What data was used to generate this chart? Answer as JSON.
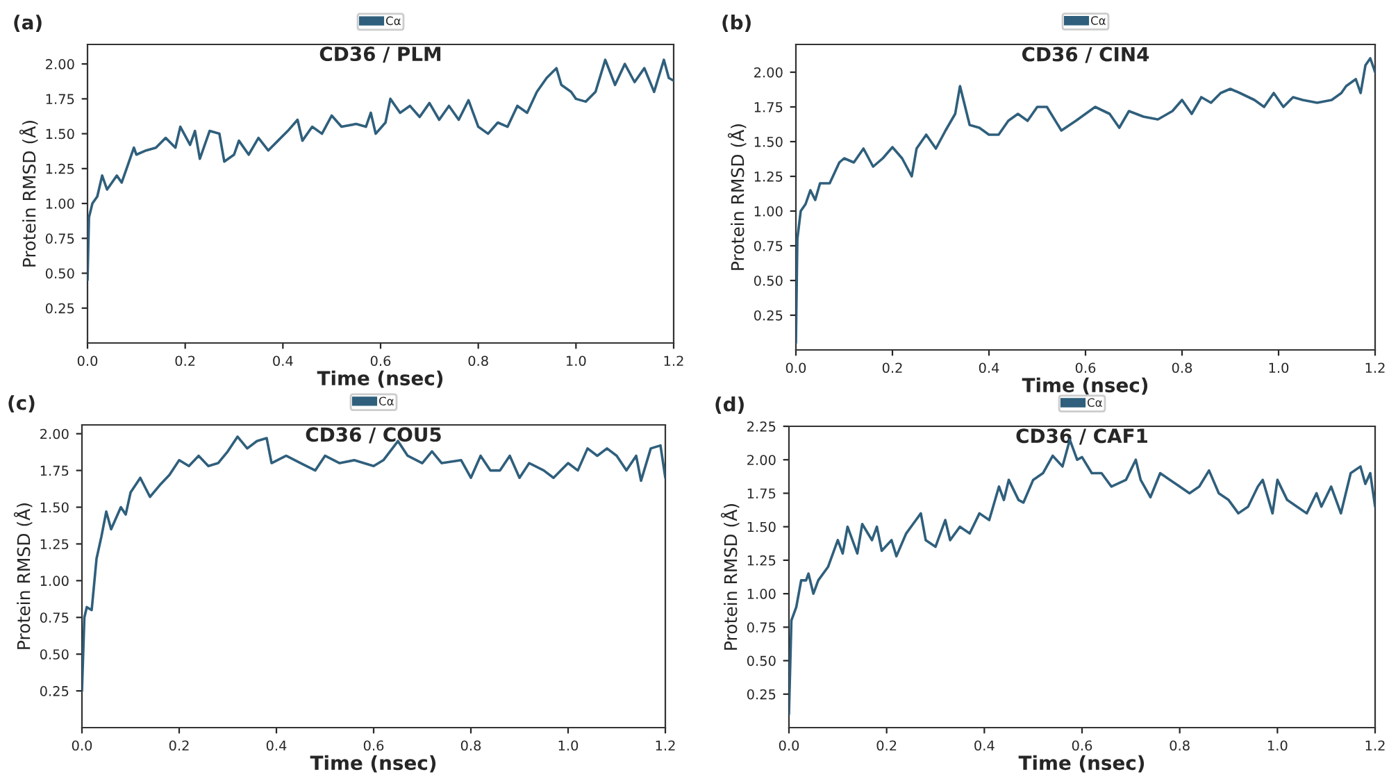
{
  "chart_data": [
    {
      "type": "line",
      "title": "CD36 / PLM",
      "xlabel": "Time (nsec)",
      "ylabel": "Protein RMSD (Å)",
      "annotations": [
        "(a)"
      ],
      "legend": "top",
      "grid": false,
      "xlim": [
        0,
        1.2
      ],
      "ylim": [
        0,
        2.14
      ],
      "xticks": [
        {
          "value": 0,
          "label": "0.0"
        },
        {
          "value": 0.2,
          "label": "0.2"
        },
        {
          "value": 0.4,
          "label": "0.4"
        },
        {
          "value": 0.6,
          "label": "0.6"
        },
        {
          "value": 0.8,
          "label": "0.8"
        },
        {
          "value": 1.0,
          "label": "1.0"
        },
        {
          "value": 1.2,
          "label": "1.2"
        }
      ],
      "yticks": [
        {
          "value": 0.25,
          "label": "0.25"
        },
        {
          "value": 0.5,
          "label": "0.50"
        },
        {
          "value": 0.75,
          "label": "0.75"
        },
        {
          "value": 1.0,
          "label": "1.00"
        },
        {
          "value": 1.25,
          "label": "1.25"
        },
        {
          "value": 1.5,
          "label": "1.50"
        },
        {
          "value": 1.75,
          "label": "1.75"
        },
        {
          "value": 2.0,
          "label": "2.00"
        }
      ],
      "series": [
        {
          "name": "Cα",
          "color": "#2f5f7c",
          "x": [
            0,
            0.003,
            0.01,
            0.02,
            0.03,
            0.04,
            0.05,
            0.06,
            0.07,
            0.08,
            0.095,
            0.1,
            0.12,
            0.14,
            0.16,
            0.18,
            0.19,
            0.21,
            0.22,
            0.23,
            0.25,
            0.27,
            0.28,
            0.3,
            0.31,
            0.33,
            0.35,
            0.37,
            0.39,
            0.41,
            0.43,
            0.44,
            0.46,
            0.48,
            0.5,
            0.52,
            0.55,
            0.57,
            0.58,
            0.59,
            0.61,
            0.62,
            0.64,
            0.66,
            0.68,
            0.7,
            0.72,
            0.74,
            0.76,
            0.78,
            0.8,
            0.82,
            0.84,
            0.86,
            0.88,
            0.9,
            0.92,
            0.94,
            0.96,
            0.97,
            0.99,
            1.0,
            1.02,
            1.04,
            1.06,
            1.08,
            1.1,
            1.12,
            1.14,
            1.16,
            1.18,
            1.19,
            1.2
          ],
          "values": [
            0.45,
            0.9,
            1.0,
            1.05,
            1.2,
            1.1,
            1.15,
            1.2,
            1.15,
            1.25,
            1.4,
            1.35,
            1.38,
            1.4,
            1.47,
            1.4,
            1.55,
            1.42,
            1.52,
            1.32,
            1.52,
            1.5,
            1.3,
            1.35,
            1.45,
            1.35,
            1.47,
            1.38,
            1.45,
            1.52,
            1.6,
            1.45,
            1.55,
            1.5,
            1.63,
            1.55,
            1.57,
            1.55,
            1.65,
            1.5,
            1.58,
            1.75,
            1.65,
            1.7,
            1.62,
            1.72,
            1.6,
            1.7,
            1.6,
            1.74,
            1.55,
            1.5,
            1.58,
            1.55,
            1.7,
            1.65,
            1.8,
            1.9,
            1.97,
            1.85,
            1.8,
            1.75,
            1.73,
            1.8,
            2.03,
            1.85,
            2.0,
            1.87,
            1.97,
            1.8,
            2.03,
            1.9,
            1.88
          ]
        }
      ]
    },
    {
      "type": "line",
      "title": "CD36 / CIN4",
      "xlabel": "Time (nsec)",
      "ylabel": "Protein RMSD (Å)",
      "annotations": [
        "(b)"
      ],
      "legend": "top",
      "grid": false,
      "xlim": [
        0,
        1.2
      ],
      "ylim": [
        0,
        2.2
      ],
      "xticks": [
        {
          "value": 0,
          "label": "0.0"
        },
        {
          "value": 0.2,
          "label": "0.2"
        },
        {
          "value": 0.4,
          "label": "0.4"
        },
        {
          "value": 0.6,
          "label": "0.6"
        },
        {
          "value": 0.8,
          "label": "0.8"
        },
        {
          "value": 1.0,
          "label": "1.0"
        },
        {
          "value": 1.2,
          "label": "1.2"
        }
      ],
      "yticks": [
        {
          "value": 0.25,
          "label": "0.25"
        },
        {
          "value": 0.5,
          "label": "0.50"
        },
        {
          "value": 0.75,
          "label": "0.75"
        },
        {
          "value": 1.0,
          "label": "1.00"
        },
        {
          "value": 1.25,
          "label": "1.25"
        },
        {
          "value": 1.5,
          "label": "1.50"
        },
        {
          "value": 1.75,
          "label": "1.75"
        },
        {
          "value": 2.0,
          "label": "2.00"
        }
      ],
      "series": [
        {
          "name": "Cα",
          "color": "#2f5f7c",
          "x": [
            0,
            0.003,
            0.01,
            0.02,
            0.03,
            0.04,
            0.05,
            0.07,
            0.09,
            0.1,
            0.12,
            0.14,
            0.16,
            0.18,
            0.2,
            0.22,
            0.24,
            0.25,
            0.27,
            0.29,
            0.31,
            0.33,
            0.34,
            0.36,
            0.38,
            0.4,
            0.42,
            0.44,
            0.46,
            0.48,
            0.5,
            0.52,
            0.55,
            0.58,
            0.6,
            0.62,
            0.65,
            0.67,
            0.69,
            0.72,
            0.75,
            0.78,
            0.8,
            0.82,
            0.84,
            0.86,
            0.88,
            0.9,
            0.92,
            0.95,
            0.97,
            0.99,
            1.01,
            1.03,
            1.05,
            1.08,
            1.11,
            1.13,
            1.14,
            1.16,
            1.17,
            1.18,
            1.19,
            1.2
          ],
          "values": [
            0.05,
            0.8,
            1.0,
            1.05,
            1.15,
            1.08,
            1.2,
            1.2,
            1.35,
            1.38,
            1.35,
            1.45,
            1.32,
            1.38,
            1.46,
            1.38,
            1.25,
            1.45,
            1.55,
            1.45,
            1.58,
            1.7,
            1.9,
            1.62,
            1.6,
            1.55,
            1.55,
            1.65,
            1.7,
            1.65,
            1.75,
            1.75,
            1.58,
            1.65,
            1.7,
            1.75,
            1.7,
            1.6,
            1.72,
            1.68,
            1.66,
            1.72,
            1.8,
            1.7,
            1.82,
            1.78,
            1.85,
            1.88,
            1.85,
            1.8,
            1.75,
            1.85,
            1.75,
            1.82,
            1.8,
            1.78,
            1.8,
            1.85,
            1.9,
            1.95,
            1.85,
            2.05,
            2.1,
            2.0
          ]
        }
      ]
    },
    {
      "type": "line",
      "title": "CD36 / COU5",
      "xlabel": "Time (nsec)",
      "ylabel": "Protein RMSD (Å)",
      "annotations": [
        "(c)"
      ],
      "legend": "top",
      "grid": false,
      "xlim": [
        0,
        1.2
      ],
      "ylim": [
        0,
        2.06
      ],
      "xticks": [
        {
          "value": 0,
          "label": "0.0"
        },
        {
          "value": 0.2,
          "label": "0.2"
        },
        {
          "value": 0.4,
          "label": "0.4"
        },
        {
          "value": 0.6,
          "label": "0.6"
        },
        {
          "value": 0.8,
          "label": "0.8"
        },
        {
          "value": 1.0,
          "label": "1.0"
        },
        {
          "value": 1.2,
          "label": "1.2"
        }
      ],
      "yticks": [
        {
          "value": 0.25,
          "label": "0.25"
        },
        {
          "value": 0.5,
          "label": "0.50"
        },
        {
          "value": 0.75,
          "label": "0.75"
        },
        {
          "value": 1.0,
          "label": "1.00"
        },
        {
          "value": 1.25,
          "label": "1.25"
        },
        {
          "value": 1.5,
          "label": "1.50"
        },
        {
          "value": 1.75,
          "label": "1.75"
        },
        {
          "value": 2.0,
          "label": "2.00"
        }
      ],
      "series": [
        {
          "name": "Cα",
          "color": "#2f5f7c",
          "x": [
            0,
            0.005,
            0.01,
            0.02,
            0.03,
            0.04,
            0.05,
            0.06,
            0.08,
            0.09,
            0.1,
            0.12,
            0.14,
            0.16,
            0.18,
            0.2,
            0.22,
            0.24,
            0.26,
            0.28,
            0.3,
            0.32,
            0.34,
            0.36,
            0.38,
            0.39,
            0.42,
            0.45,
            0.48,
            0.5,
            0.53,
            0.56,
            0.6,
            0.62,
            0.65,
            0.67,
            0.7,
            0.72,
            0.74,
            0.78,
            0.8,
            0.82,
            0.84,
            0.86,
            0.88,
            0.9,
            0.92,
            0.95,
            0.97,
            1.0,
            1.02,
            1.04,
            1.06,
            1.08,
            1.1,
            1.12,
            1.14,
            1.15,
            1.17,
            1.19,
            1.2
          ],
          "values": [
            0.25,
            0.75,
            0.82,
            0.8,
            1.15,
            1.3,
            1.47,
            1.35,
            1.5,
            1.45,
            1.6,
            1.7,
            1.57,
            1.65,
            1.72,
            1.82,
            1.78,
            1.85,
            1.78,
            1.8,
            1.88,
            1.98,
            1.9,
            1.95,
            1.97,
            1.8,
            1.85,
            1.8,
            1.75,
            1.85,
            1.8,
            1.82,
            1.78,
            1.82,
            1.95,
            1.85,
            1.8,
            1.88,
            1.8,
            1.82,
            1.7,
            1.85,
            1.75,
            1.75,
            1.85,
            1.7,
            1.8,
            1.75,
            1.7,
            1.8,
            1.75,
            1.9,
            1.85,
            1.9,
            1.85,
            1.75,
            1.85,
            1.68,
            1.9,
            1.92,
            1.7
          ]
        }
      ]
    },
    {
      "type": "line",
      "title": "CD36 / CAF1",
      "xlabel": "Time (nsec)",
      "ylabel": "Protein RMSD (Å)",
      "annotations": [
        "(d)"
      ],
      "legend": "top",
      "grid": false,
      "xlim": [
        0,
        1.2
      ],
      "ylim": [
        0,
        2.25
      ],
      "xticks": [
        {
          "value": 0,
          "label": "0.0"
        },
        {
          "value": 0.2,
          "label": "0.2"
        },
        {
          "value": 0.4,
          "label": "0.4"
        },
        {
          "value": 0.6,
          "label": "0.6"
        },
        {
          "value": 0.8,
          "label": "0.8"
        },
        {
          "value": 1.0,
          "label": "1.0"
        },
        {
          "value": 1.2,
          "label": "1.2"
        }
      ],
      "yticks": [
        {
          "value": 0.25,
          "label": "0.25"
        },
        {
          "value": 0.5,
          "label": "0.50"
        },
        {
          "value": 0.75,
          "label": "0.75"
        },
        {
          "value": 1.0,
          "label": "1.00"
        },
        {
          "value": 1.25,
          "label": "1.25"
        },
        {
          "value": 1.5,
          "label": "1.50"
        },
        {
          "value": 1.75,
          "label": "1.75"
        },
        {
          "value": 2.0,
          "label": "2.00"
        },
        {
          "value": 2.25,
          "label": "2.25"
        }
      ],
      "series": [
        {
          "name": "Cα",
          "color": "#2f5f7c",
          "x": [
            0,
            0.005,
            0.015,
            0.025,
            0.035,
            0.04,
            0.05,
            0.06,
            0.08,
            0.1,
            0.11,
            0.12,
            0.14,
            0.15,
            0.17,
            0.18,
            0.19,
            0.21,
            0.22,
            0.24,
            0.26,
            0.27,
            0.28,
            0.3,
            0.32,
            0.33,
            0.35,
            0.37,
            0.39,
            0.41,
            0.43,
            0.44,
            0.45,
            0.47,
            0.48,
            0.5,
            0.52,
            0.54,
            0.56,
            0.575,
            0.59,
            0.6,
            0.62,
            0.64,
            0.66,
            0.69,
            0.71,
            0.72,
            0.74,
            0.76,
            0.78,
            0.8,
            0.82,
            0.84,
            0.86,
            0.88,
            0.9,
            0.92,
            0.94,
            0.96,
            0.97,
            0.99,
            1.0,
            1.02,
            1.04,
            1.06,
            1.08,
            1.09,
            1.11,
            1.13,
            1.15,
            1.17,
            1.18,
            1.19,
            1.2
          ],
          "values": [
            0.1,
            0.8,
            0.9,
            1.1,
            1.1,
            1.15,
            1.0,
            1.1,
            1.2,
            1.4,
            1.3,
            1.5,
            1.3,
            1.52,
            1.4,
            1.5,
            1.32,
            1.4,
            1.28,
            1.45,
            1.55,
            1.6,
            1.4,
            1.35,
            1.55,
            1.4,
            1.5,
            1.45,
            1.6,
            1.55,
            1.8,
            1.7,
            1.85,
            1.7,
            1.68,
            1.85,
            1.9,
            2.03,
            1.95,
            2.15,
            2.0,
            2.02,
            1.9,
            1.9,
            1.8,
            1.85,
            2.0,
            1.85,
            1.72,
            1.9,
            1.85,
            1.8,
            1.75,
            1.8,
            1.92,
            1.75,
            1.7,
            1.6,
            1.65,
            1.8,
            1.85,
            1.6,
            1.85,
            1.7,
            1.65,
            1.6,
            1.75,
            1.65,
            1.8,
            1.6,
            1.9,
            1.95,
            1.82,
            1.9,
            1.65
          ]
        }
      ]
    }
  ]
}
